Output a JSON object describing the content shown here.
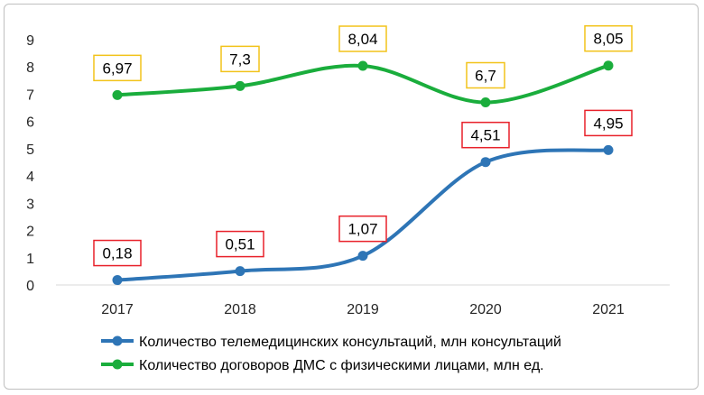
{
  "chart_data": {
    "type": "line",
    "title": "",
    "xlabel": "",
    "ylabel": "",
    "categories": [
      "2017",
      "2018",
      "2019",
      "2020",
      "2021"
    ],
    "ylim": [
      0,
      9
    ],
    "yticks": [
      "0",
      "1",
      "2",
      "3",
      "4",
      "5",
      "6",
      "7",
      "8",
      "9"
    ],
    "grid": false,
    "legend_position": "bottom",
    "series": [
      {
        "name": "Количество телемедицинских консультаций, млн консультаций",
        "values": [
          0.18,
          0.51,
          1.07,
          4.51,
          4.95
        ],
        "labels": [
          "0,18",
          "0,51",
          "1,07",
          "4,51",
          "4,95"
        ],
        "color": "#2e75b6",
        "label_border": "#e8212a"
      },
      {
        "name": "Количество договоров ДМС с  физическими лицами, млн ед.",
        "values": [
          6.97,
          7.3,
          8.04,
          6.7,
          8.05
        ],
        "labels": [
          "6,97",
          "7,3",
          "8,04",
          "6,7",
          "8,05"
        ],
        "color": "#1aad3c",
        "label_border": "#f2c31a"
      }
    ]
  }
}
